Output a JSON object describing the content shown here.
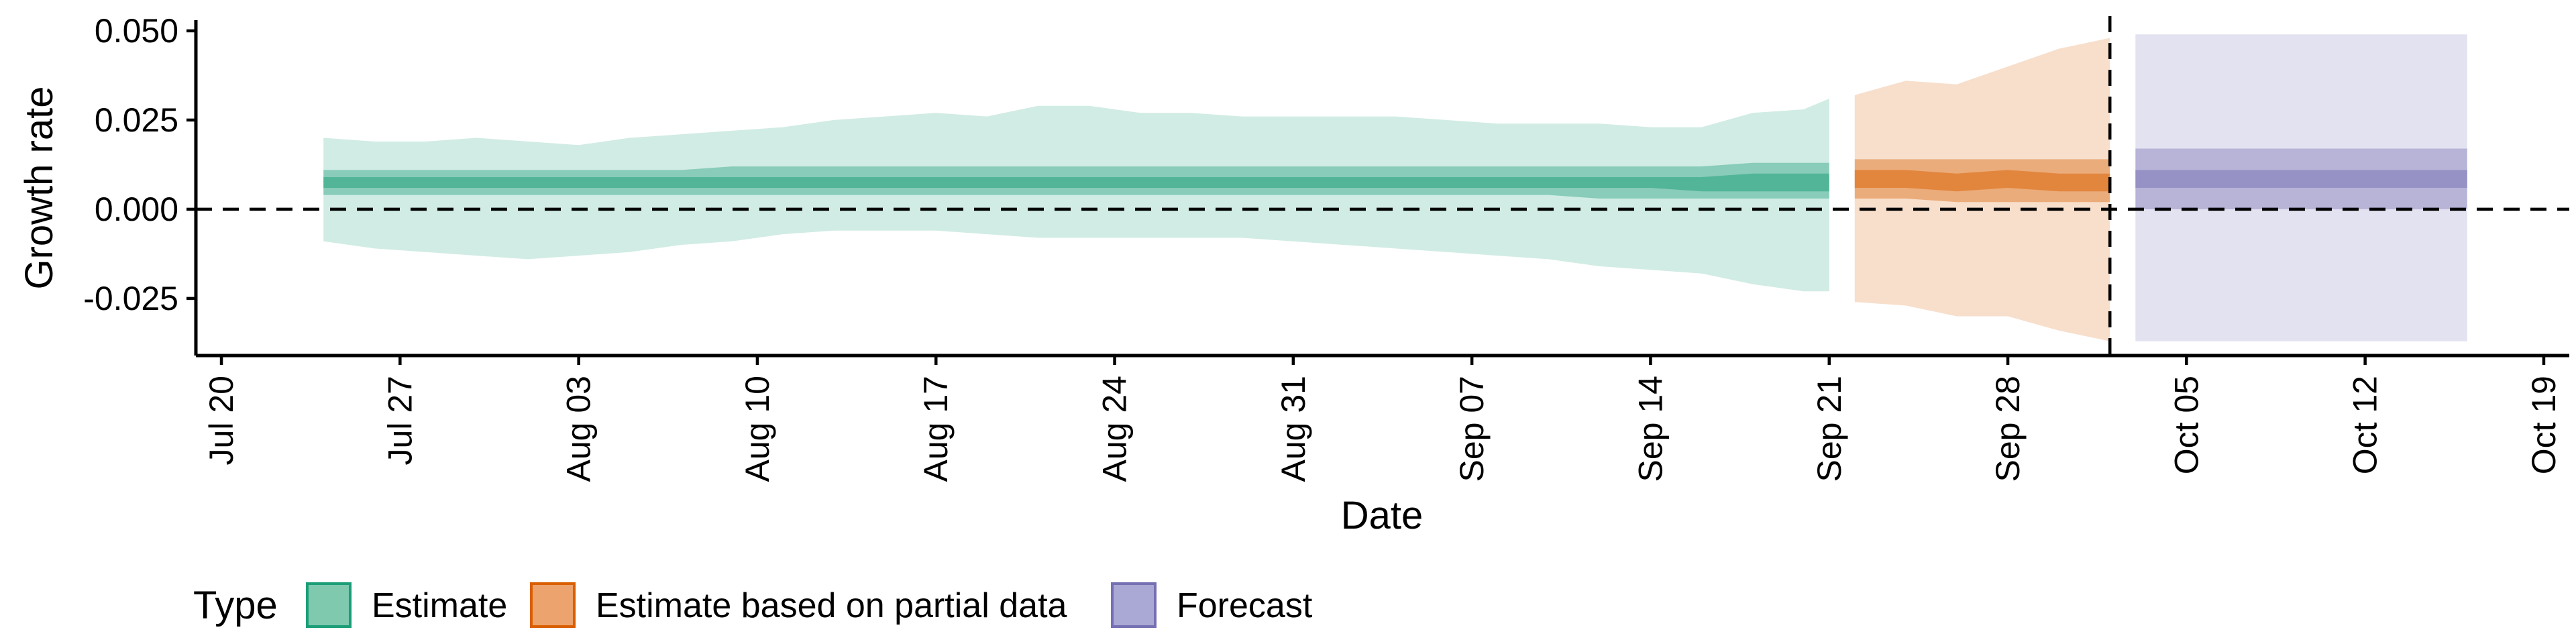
{
  "chart_data": {
    "type": "area",
    "xlabel": "Date",
    "ylabel": "Growth rate",
    "x_domain": [
      "2020-07-19",
      "2020-10-20"
    ],
    "ylim": [
      -0.041,
      0.053
    ],
    "x_ticks": [
      {
        "date": "2020-07-20",
        "label": "Jul 20"
      },
      {
        "date": "2020-07-27",
        "label": "Jul 27"
      },
      {
        "date": "2020-08-03",
        "label": "Aug 03"
      },
      {
        "date": "2020-08-10",
        "label": "Aug 10"
      },
      {
        "date": "2020-08-17",
        "label": "Aug 17"
      },
      {
        "date": "2020-08-24",
        "label": "Aug 24"
      },
      {
        "date": "2020-08-31",
        "label": "Aug 31"
      },
      {
        "date": "2020-09-07",
        "label": "Sep 07"
      },
      {
        "date": "2020-09-14",
        "label": "Sep 14"
      },
      {
        "date": "2020-09-21",
        "label": "Sep 21"
      },
      {
        "date": "2020-09-28",
        "label": "Sep 28"
      },
      {
        "date": "2020-10-05",
        "label": "Oct 05"
      },
      {
        "date": "2020-10-12",
        "label": "Oct 12"
      },
      {
        "date": "2020-10-19",
        "label": "Oct 19"
      }
    ],
    "y_ticks": [
      {
        "value": 0.05,
        "label": "0.050"
      },
      {
        "value": 0.025,
        "label": "0.025"
      },
      {
        "value": 0.0,
        "label": "0.000"
      },
      {
        "value": -0.025,
        "label": "-0.025"
      }
    ],
    "reference_lines": {
      "horizontal_y": 0.0,
      "vertical_date": "2020-10-02"
    },
    "legend": {
      "title": "Type",
      "position": "bottom-left",
      "items": [
        {
          "label": "Estimate",
          "fill": "#7fc9ae",
          "stroke": "#1b9e77"
        },
        {
          "label": "Estimate based on partial data",
          "fill": "#eda36d",
          "stroke": "#d95f02"
        },
        {
          "label": "Forecast",
          "fill": "#aaa8d4",
          "stroke": "#7570b3"
        }
      ]
    },
    "series": [
      {
        "name": "Estimate",
        "color": "#1b9e77",
        "x": [
          "2020-07-24",
          "2020-07-26",
          "2020-07-28",
          "2020-07-30",
          "2020-08-01",
          "2020-08-03",
          "2020-08-05",
          "2020-08-07",
          "2020-08-09",
          "2020-08-11",
          "2020-08-13",
          "2020-08-15",
          "2020-08-17",
          "2020-08-19",
          "2020-08-21",
          "2020-08-23",
          "2020-08-25",
          "2020-08-27",
          "2020-08-29",
          "2020-08-31",
          "2020-09-02",
          "2020-09-04",
          "2020-09-06",
          "2020-09-08",
          "2020-09-10",
          "2020-09-12",
          "2020-09-14",
          "2020-09-16",
          "2020-09-18",
          "2020-09-20",
          "2020-09-21"
        ],
        "outer_upper": [
          0.02,
          0.019,
          0.019,
          0.02,
          0.019,
          0.018,
          0.02,
          0.021,
          0.022,
          0.023,
          0.025,
          0.026,
          0.027,
          0.026,
          0.029,
          0.029,
          0.027,
          0.027,
          0.026,
          0.026,
          0.026,
          0.026,
          0.025,
          0.024,
          0.024,
          0.024,
          0.023,
          0.023,
          0.027,
          0.028,
          0.031
        ],
        "outer_lower": [
          -0.009,
          -0.011,
          -0.012,
          -0.013,
          -0.014,
          -0.013,
          -0.012,
          -0.01,
          -0.009,
          -0.007,
          -0.006,
          -0.006,
          -0.006,
          -0.007,
          -0.008,
          -0.008,
          -0.008,
          -0.008,
          -0.008,
          -0.009,
          -0.01,
          -0.011,
          -0.012,
          -0.013,
          -0.014,
          -0.016,
          -0.017,
          -0.018,
          -0.021,
          -0.023,
          -0.023
        ],
        "mid_upper": [
          0.011,
          0.011,
          0.011,
          0.011,
          0.011,
          0.011,
          0.011,
          0.011,
          0.012,
          0.012,
          0.012,
          0.012,
          0.012,
          0.012,
          0.012,
          0.012,
          0.012,
          0.012,
          0.012,
          0.012,
          0.012,
          0.012,
          0.012,
          0.012,
          0.012,
          0.012,
          0.012,
          0.012,
          0.013,
          0.013,
          0.013
        ],
        "mid_lower": [
          0.004,
          0.004,
          0.004,
          0.004,
          0.004,
          0.004,
          0.004,
          0.004,
          0.004,
          0.004,
          0.004,
          0.004,
          0.004,
          0.004,
          0.004,
          0.004,
          0.004,
          0.004,
          0.004,
          0.004,
          0.004,
          0.004,
          0.004,
          0.004,
          0.004,
          0.003,
          0.003,
          0.003,
          0.003,
          0.003,
          0.003
        ],
        "inner_upper": [
          0.009,
          0.009,
          0.009,
          0.009,
          0.009,
          0.009,
          0.009,
          0.009,
          0.009,
          0.009,
          0.009,
          0.009,
          0.009,
          0.009,
          0.009,
          0.009,
          0.009,
          0.009,
          0.009,
          0.009,
          0.009,
          0.009,
          0.009,
          0.009,
          0.009,
          0.009,
          0.009,
          0.009,
          0.01,
          0.01,
          0.01
        ],
        "inner_lower": [
          0.006,
          0.006,
          0.006,
          0.006,
          0.006,
          0.006,
          0.006,
          0.006,
          0.006,
          0.006,
          0.006,
          0.006,
          0.006,
          0.006,
          0.006,
          0.006,
          0.006,
          0.006,
          0.006,
          0.006,
          0.006,
          0.006,
          0.006,
          0.006,
          0.006,
          0.006,
          0.006,
          0.005,
          0.005,
          0.005,
          0.005
        ]
      },
      {
        "name": "Estimate based on partial data",
        "color": "#d95f02",
        "x": [
          "2020-09-22",
          "2020-09-24",
          "2020-09-26",
          "2020-09-28",
          "2020-09-30",
          "2020-10-02"
        ],
        "outer_upper": [
          0.032,
          0.036,
          0.035,
          0.04,
          0.045,
          0.048
        ],
        "outer_lower": [
          -0.026,
          -0.027,
          -0.03,
          -0.03,
          -0.034,
          -0.037
        ],
        "mid_upper": [
          0.014,
          0.014,
          0.014,
          0.014,
          0.014,
          0.014
        ],
        "mid_lower": [
          0.003,
          0.003,
          0.002,
          0.002,
          0.002,
          0.002
        ],
        "inner_upper": [
          0.011,
          0.011,
          0.01,
          0.011,
          0.01,
          0.01
        ],
        "inner_lower": [
          0.006,
          0.006,
          0.005,
          0.006,
          0.005,
          0.005
        ]
      },
      {
        "name": "Forecast",
        "color": "#7570b3",
        "x": [
          "2020-10-03",
          "2020-10-16"
        ],
        "outer_upper": [
          0.049,
          0.049
        ],
        "outer_lower": [
          -0.037,
          -0.037
        ],
        "mid_upper": [
          0.017,
          0.017
        ],
        "mid_lower": [
          0.0,
          0.0
        ],
        "inner_upper": [
          0.011,
          0.011
        ],
        "inner_lower": [
          0.006,
          0.006
        ]
      }
    ]
  }
}
